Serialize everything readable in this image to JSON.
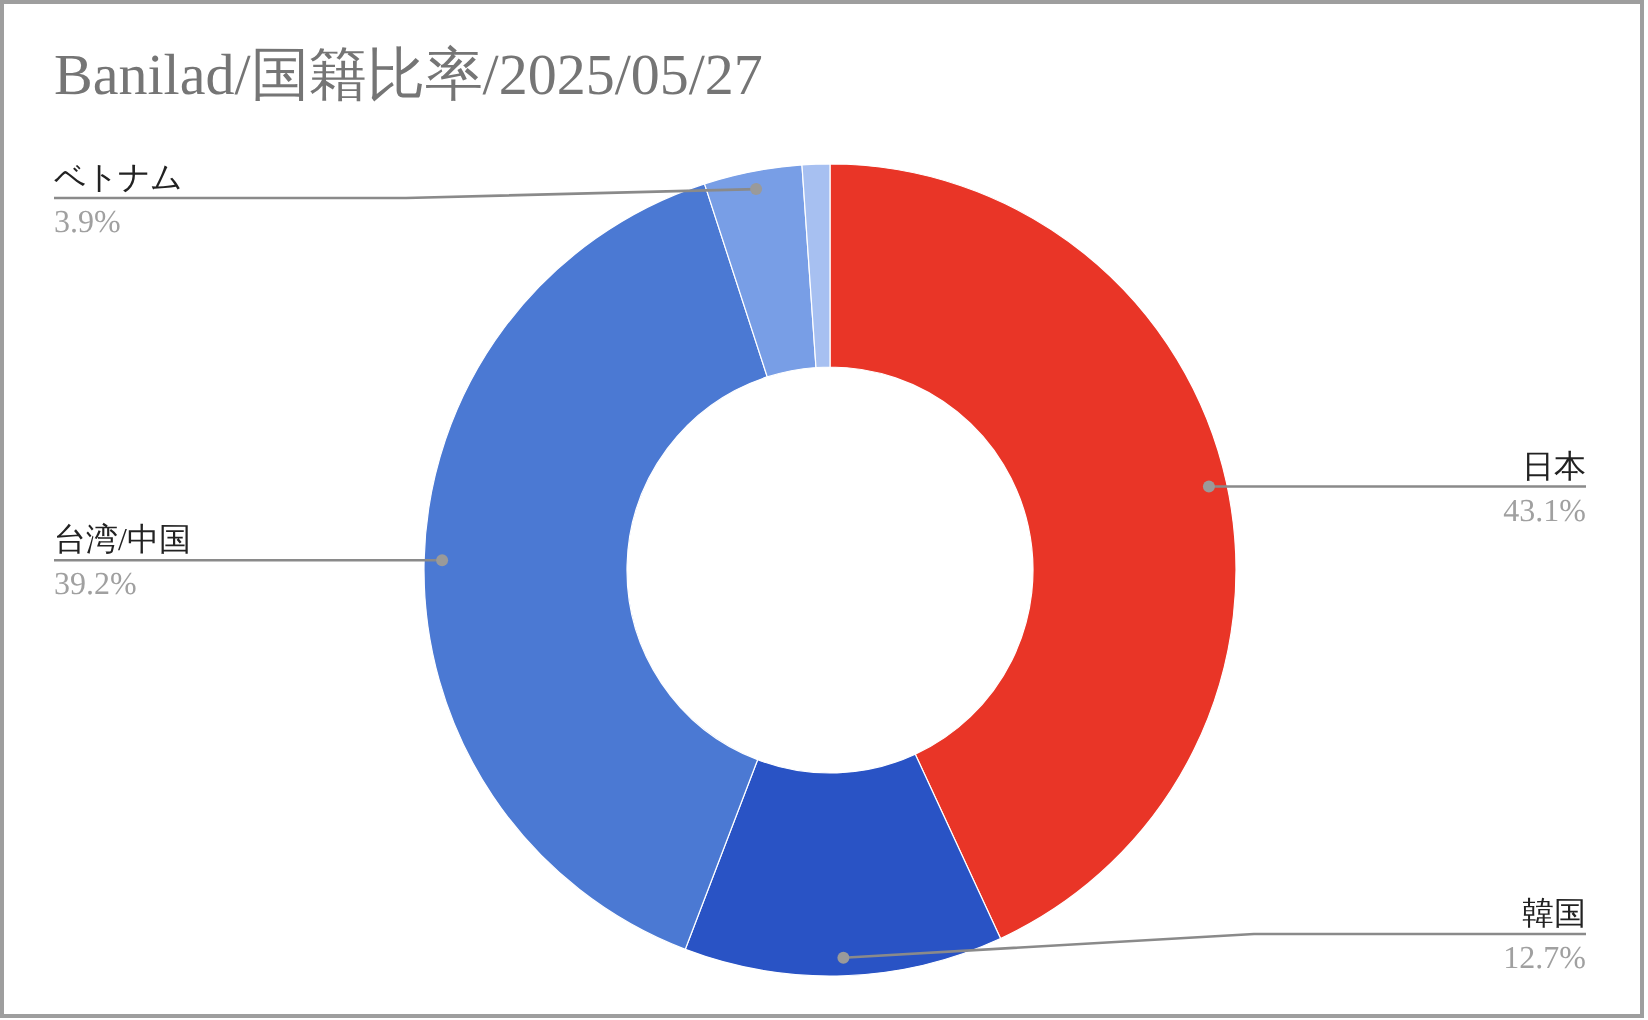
{
  "chart_data": {
    "type": "donut",
    "title": "Banilad/国籍比率/2025/05/27",
    "categories": [
      "日本",
      "韓国",
      "台湾/中国",
      "ベトナム",
      null
    ],
    "values": [
      43.1,
      12.7,
      39.2,
      3.9,
      1.1
    ],
    "value_labels": [
      "43.1%",
      "12.7%",
      "39.2%",
      "3.9%",
      null
    ],
    "colors": [
      "#e93527",
      "#2953c5",
      "#4b79d3",
      "#789ee6",
      "#a7c0f1"
    ]
  }
}
